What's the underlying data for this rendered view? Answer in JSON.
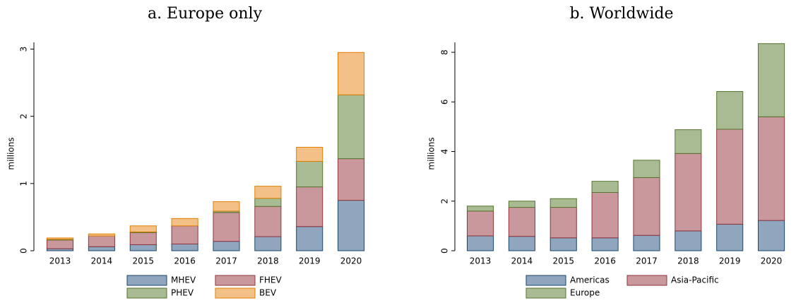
{
  "chart_data": [
    {
      "type": "stacked_bar",
      "title": "a. Europe only",
      "y_label": "millions",
      "categories": [
        "2013",
        "2014",
        "2015",
        "2016",
        "2017",
        "2018",
        "2019",
        "2020"
      ],
      "series": [
        {
          "name": "MHEV",
          "color": "#8fa6be",
          "edge": "#1a476f",
          "values": [
            0.03,
            0.06,
            0.09,
            0.1,
            0.14,
            0.21,
            0.36,
            0.75
          ]
        },
        {
          "name": "FHEV",
          "color": "#c9989c",
          "edge": "#90353b",
          "values": [
            0.13,
            0.16,
            0.18,
            0.27,
            0.43,
            0.45,
            0.59,
            0.62
          ]
        },
        {
          "name": "PHEV",
          "color": "#a9bb93",
          "edge": "#55752f",
          "values": [
            0.01,
            0.0,
            0.01,
            0.0,
            0.02,
            0.12,
            0.38,
            0.95
          ]
        },
        {
          "name": "BEV",
          "color": "#f3c187",
          "edge": "#e37e00",
          "values": [
            0.02,
            0.03,
            0.09,
            0.11,
            0.14,
            0.18,
            0.21,
            0.63
          ]
        }
      ],
      "ylim": [
        0,
        3.1
      ],
      "yticks": [
        0,
        1,
        2,
        3
      ]
    },
    {
      "type": "stacked_bar",
      "title": "b. Worldwide",
      "y_label": "millions",
      "categories": [
        "2013",
        "2014",
        "2015",
        "2016",
        "2017",
        "2018",
        "2019",
        "2020"
      ],
      "series": [
        {
          "name": "Americas",
          "color": "#8fa6be",
          "edge": "#1a476f",
          "values": [
            0.6,
            0.58,
            0.52,
            0.52,
            0.62,
            0.8,
            1.07,
            1.22
          ]
        },
        {
          "name": "Asia-Pacific",
          "color": "#c9989c",
          "edge": "#90353b",
          "values": [
            1.0,
            1.17,
            1.23,
            1.83,
            2.33,
            3.12,
            3.83,
            4.18
          ]
        },
        {
          "name": "Europe",
          "color": "#a9bb93",
          "edge": "#55752f",
          "values": [
            0.2,
            0.25,
            0.35,
            0.45,
            0.7,
            0.96,
            1.52,
            2.95
          ]
        }
      ],
      "ylim": [
        0,
        8.4
      ],
      "yticks": [
        0,
        2,
        4,
        6,
        8
      ]
    }
  ]
}
